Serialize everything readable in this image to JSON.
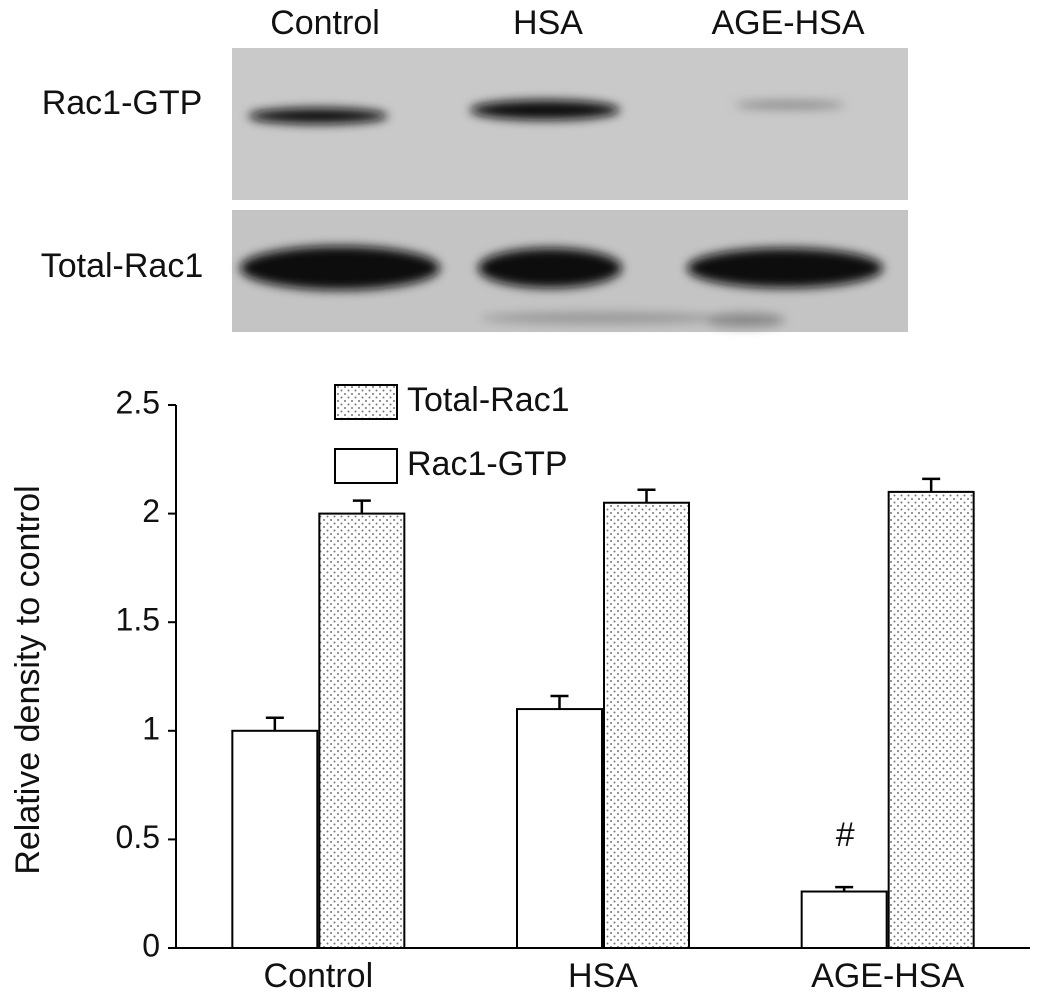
{
  "blot": {
    "lanes": [
      "Control",
      "HSA",
      "AGE-HSA"
    ],
    "rows": [
      "Rac1-GTP",
      "Total-Rac1"
    ]
  },
  "chart_data": {
    "type": "bar",
    "ylabel": "Relative density to control",
    "categories": [
      "Control",
      "HSA",
      "AGE-HSA"
    ],
    "series": [
      {
        "name": "Rac1-GTP",
        "color": "#ffffff",
        "fill_pattern": "none",
        "values": [
          1.0,
          1.1,
          0.26
        ],
        "errors": [
          0.06,
          0.06,
          0.02
        ]
      },
      {
        "name": "Total-Rac1",
        "color": "#ffffff",
        "fill_pattern": "dots",
        "values": [
          2.0,
          2.05,
          2.1
        ],
        "errors": [
          0.06,
          0.06,
          0.06
        ]
      }
    ],
    "annotations": [
      {
        "text": "#",
        "category": 2,
        "series": 0
      }
    ],
    "ylim": [
      0,
      2.5
    ],
    "yticks": [
      0,
      0.5,
      1,
      1.5,
      2,
      2.5
    ],
    "grid": false,
    "legend": "top-left"
  }
}
